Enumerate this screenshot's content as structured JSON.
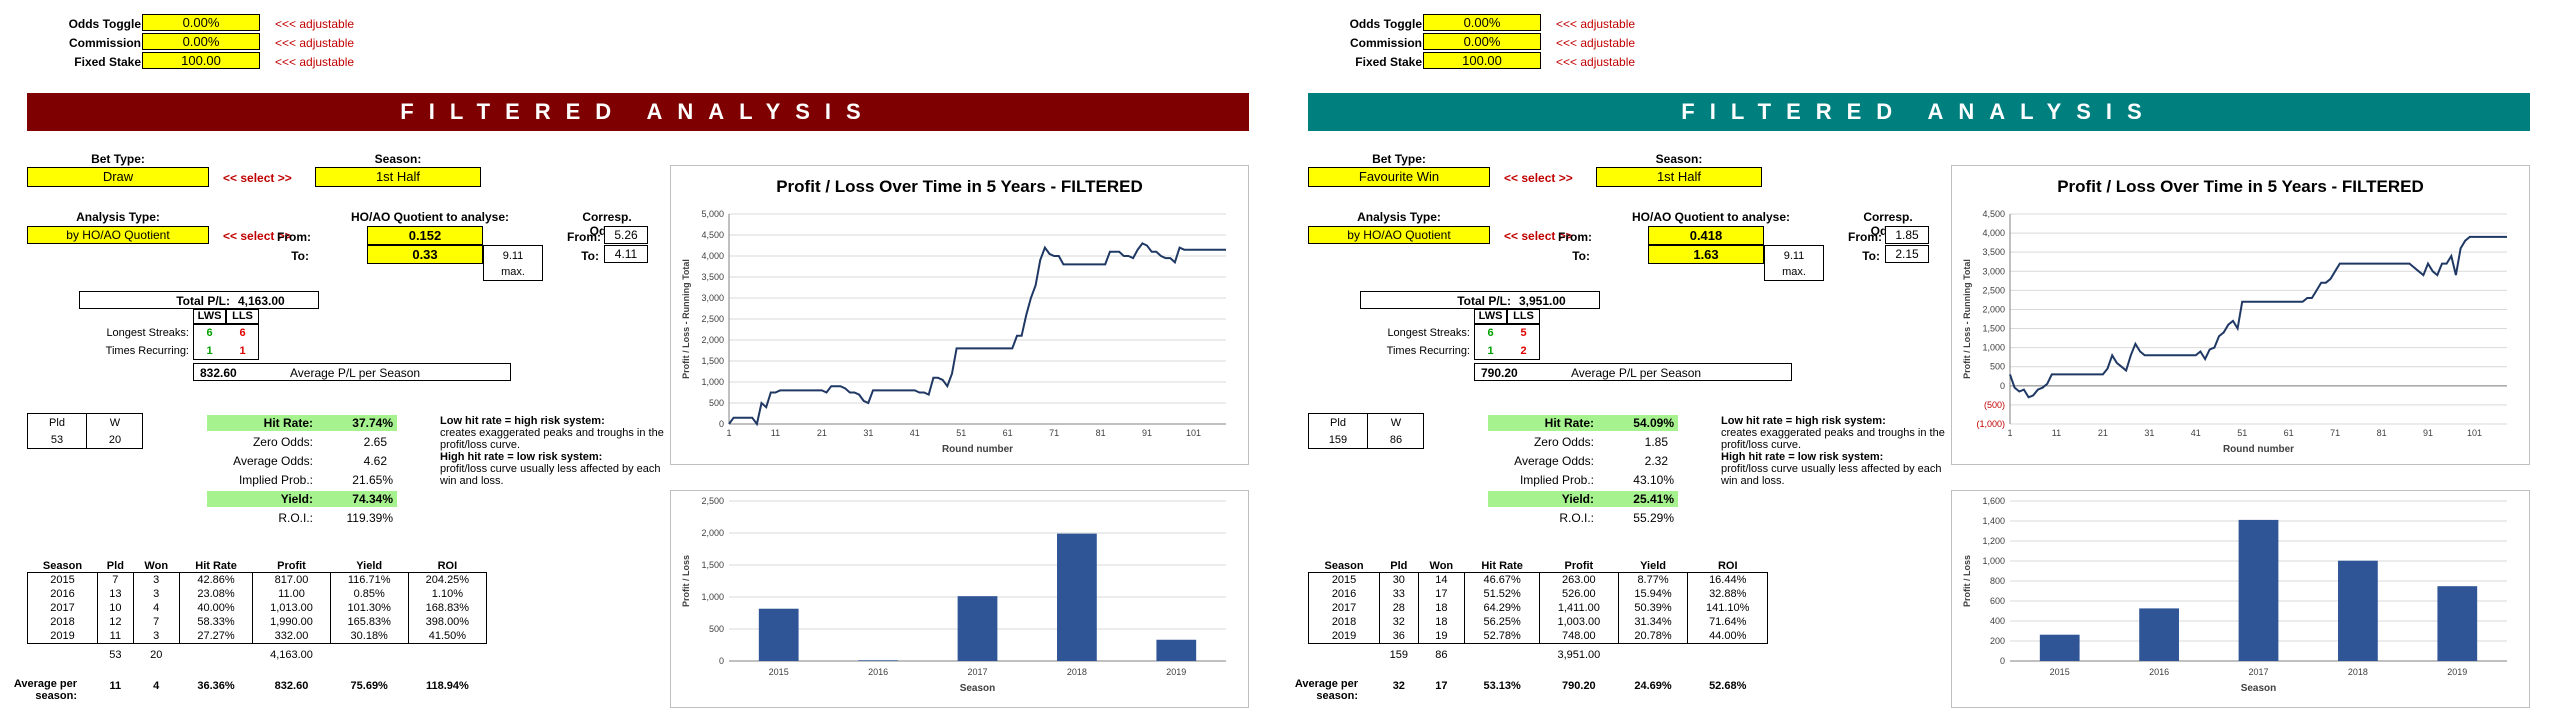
{
  "common": {
    "odds_toggle_label": "Odds Toggle:",
    "commission_label": "Commission:",
    "fixed_stake_label": "Fixed Stake:",
    "adjustable": "<<< adjustable",
    "banner": "FILTERED ANALYSIS",
    "bet_type_label": "Bet Type:",
    "season_label": "Season:",
    "select": "<< select >>",
    "analysis_type_label": "Analysis Type:",
    "quotient_label": "HO/AO Quotient to analyse:",
    "from_label": "From:",
    "to_label": "To:",
    "max_label": "max.",
    "corresp_label": "Corresp. Odds:",
    "total_pl_label": "Total P/L:",
    "lws": "LWS",
    "lls": "LLS",
    "longest_streaks_label": "Longest Streaks:",
    "times_recurring_label": "Times Recurring:",
    "avg_pl_season_label": "Average P/L per Season",
    "pld": "Pld",
    "w": "W",
    "hit_rate_label": "Hit Rate:",
    "zero_odds_label": "Zero Odds:",
    "average_odds_label": "Average Odds:",
    "implied_prob_label": "Implied Prob.:",
    "yield_label": "Yield:",
    "roi_label": "R.O.I.:",
    "note_low_title": "Low hit rate = high risk system:",
    "note_low_body": "creates exaggerated peaks and troughs in the profit/loss curve.",
    "note_high_title": "High hit rate = low risk system:",
    "note_high_body": "profit/loss curve usually less affected by each win and loss.",
    "table_headers": [
      "Season",
      "Pld",
      "Won",
      "Hit Rate",
      "Profit",
      "Yield",
      "ROI"
    ],
    "avg_per_label_1": "Average per",
    "avg_per_label_2": "season:",
    "line_title": "Profit / Loss Over Time in 5 Years - FILTERED",
    "line_ylabel": "Profit / Loss - Running Total",
    "line_xlabel": "Round number",
    "line_xticks": [
      "1",
      "11",
      "21",
      "31",
      "41",
      "51",
      "61",
      "71",
      "81",
      "91",
      "101"
    ],
    "bar_ylabel": "Profit / Loss",
    "bar_xlabel": "Season",
    "accent_left": "#7f0000",
    "accent_right": "#007f7f",
    "series_color": "#1f3864",
    "bar_color": "#2f5597"
  },
  "left": {
    "odds_toggle": "0.00%",
    "commission": "0.00%",
    "fixed_stake": "100.00",
    "bet_type": "Draw",
    "season": "1st Half",
    "analysis_type": "by HO/AO Quotient",
    "quotient_from": "0.152",
    "quotient_to": "0.33",
    "max_value": "9.11",
    "odds_from": "5.26",
    "odds_to": "4.11",
    "total_pl": "4,163.00",
    "lws_streak": "6",
    "lls_streak": "6",
    "lws_times": "1",
    "lls_times": "1",
    "avg_pl_season": "832.60",
    "pld": "53",
    "w": "20",
    "hit_rate": "37.74%",
    "zero_odds": "2.65",
    "average_odds": "4.62",
    "implied_prob": "21.65%",
    "yield": "74.34%",
    "roi": "119.39%",
    "rows": [
      [
        "2015",
        "7",
        "3",
        "42.86%",
        "817.00",
        "116.71%",
        "204.25%"
      ],
      [
        "2016",
        "13",
        "3",
        "23.08%",
        "11.00",
        "0.85%",
        "1.10%"
      ],
      [
        "2017",
        "10",
        "4",
        "40.00%",
        "1,013.00",
        "101.30%",
        "168.83%"
      ],
      [
        "2018",
        "12",
        "7",
        "58.33%",
        "1,990.00",
        "165.83%",
        "398.00%"
      ],
      [
        "2019",
        "11",
        "3",
        "27.27%",
        "332.00",
        "30.18%",
        "41.50%"
      ]
    ],
    "totals": [
      "53",
      "20",
      "4,163.00"
    ],
    "averages": [
      "11",
      "4",
      "36.36%",
      "832.60",
      "75.69%",
      "118.94%"
    ]
  },
  "right": {
    "odds_toggle": "0.00%",
    "commission": "0.00%",
    "fixed_stake": "100.00",
    "bet_type": "Favourite Win",
    "season": "1st Half",
    "analysis_type": "by HO/AO Quotient",
    "quotient_from": "0.418",
    "quotient_to": "1.63",
    "max_value": "9.11",
    "odds_from": "1.85",
    "odds_to": "2.15",
    "total_pl": "3,951.00",
    "lws_streak": "6",
    "lls_streak": "5",
    "lws_times": "1",
    "lls_times": "2",
    "avg_pl_season": "790.20",
    "pld": "159",
    "w": "86",
    "hit_rate": "54.09%",
    "zero_odds": "1.85",
    "average_odds": "2.32",
    "implied_prob": "43.10%",
    "yield": "25.41%",
    "roi": "55.29%",
    "rows": [
      [
        "2015",
        "30",
        "14",
        "46.67%",
        "263.00",
        "8.77%",
        "16.44%"
      ],
      [
        "2016",
        "33",
        "17",
        "51.52%",
        "526.00",
        "15.94%",
        "32.88%"
      ],
      [
        "2017",
        "28",
        "18",
        "64.29%",
        "1,411.00",
        "50.39%",
        "141.10%"
      ],
      [
        "2018",
        "32",
        "18",
        "56.25%",
        "1,003.00",
        "31.34%",
        "71.64%"
      ],
      [
        "2019",
        "36",
        "19",
        "52.78%",
        "748.00",
        "20.78%",
        "44.00%"
      ]
    ],
    "totals": [
      "159",
      "86",
      "3,951.00"
    ],
    "averages": [
      "32",
      "17",
      "53.13%",
      "790.20",
      "24.69%",
      "52.68%"
    ]
  },
  "chart_data": [
    {
      "type": "line",
      "title": "Profit / Loss Over Time in 5 Years - FILTERED",
      "xlabel": "Round number",
      "ylabel": "Profit / Loss - Running Total",
      "ylim": [
        0,
        5000
      ],
      "xlim": [
        1,
        108
      ],
      "yticks": [
        "0",
        "500",
        "1,000",
        "1,500",
        "2,000",
        "2,500",
        "3,000",
        "3,500",
        "4,000",
        "4,500",
        "5,000"
      ],
      "x": [
        1,
        2,
        3,
        4,
        5,
        6,
        7,
        8,
        9,
        10,
        11,
        12,
        13,
        14,
        15,
        16,
        17,
        18,
        19,
        20,
        21,
        22,
        23,
        24,
        25,
        26,
        27,
        28,
        29,
        30,
        31,
        32,
        33,
        34,
        35,
        36,
        37,
        38,
        39,
        40,
        41,
        42,
        43,
        44,
        45,
        46,
        47,
        48,
        49,
        50,
        51,
        52,
        53,
        54,
        55,
        56,
        57,
        58,
        59,
        60,
        61,
        62,
        63,
        64,
        65,
        66,
        67,
        68,
        69,
        70,
        71,
        72,
        73,
        74,
        75,
        76,
        77,
        78,
        79,
        80,
        81,
        82,
        83,
        84,
        85,
        86,
        87,
        88,
        89,
        90,
        91,
        92,
        93,
        94,
        95,
        96,
        97,
        98,
        99,
        100,
        101,
        102,
        103,
        104,
        105,
        106,
        107,
        108
      ],
      "y": [
        0,
        150,
        150,
        150,
        150,
        150,
        0,
        500,
        400,
        750,
        750,
        800,
        800,
        800,
        800,
        800,
        800,
        800,
        800,
        800,
        800,
        750,
        900,
        900,
        900,
        850,
        750,
        750,
        700,
        550,
        500,
        800,
        800,
        800,
        800,
        800,
        800,
        800,
        800,
        800,
        800,
        750,
        750,
        700,
        1100,
        1100,
        1050,
        900,
        1200,
        1800,
        1800,
        1800,
        1800,
        1800,
        1800,
        1800,
        1800,
        1800,
        1800,
        1800,
        1800,
        1800,
        2100,
        2100,
        2600,
        3000,
        3300,
        3900,
        4200,
        4050,
        4000,
        4000,
        3800,
        3800,
        3800,
        3800,
        3800,
        3800,
        3800,
        3800,
        3800,
        3800,
        4100,
        4100,
        4100,
        4000,
        4000,
        3950,
        4150,
        4300,
        4250,
        4100,
        4100,
        4000,
        3950,
        3950,
        3850,
        4200,
        4150,
        4150,
        4150,
        4150,
        4150,
        4150,
        4150,
        4150,
        4150,
        4150
      ],
      "panel": "left"
    },
    {
      "type": "bar",
      "xlabel": "Season",
      "ylabel": "Profit / Loss",
      "ylim": [
        0,
        2500
      ],
      "yticks": [
        "0",
        "500",
        "1,000",
        "1,500",
        "2,000",
        "2,500"
      ],
      "categories": [
        "2015",
        "2016",
        "2017",
        "2018",
        "2019"
      ],
      "values": [
        817,
        11,
        1013,
        1990,
        332
      ],
      "panel": "left"
    },
    {
      "type": "line",
      "title": "Profit / Loss Over Time in 5 Years - FILTERED",
      "xlabel": "Round number",
      "ylabel": "Profit / Loss - Running Total",
      "ylim": [
        -1000,
        4500
      ],
      "xlim": [
        1,
        108
      ],
      "yticks": [
        "(1,000)",
        "(500)",
        "0",
        "500",
        "1,000",
        "1,500",
        "2,000",
        "2,500",
        "3,000",
        "3,500",
        "4,000",
        "4,500"
      ],
      "x": [
        1,
        2,
        3,
        4,
        5,
        6,
        7,
        8,
        9,
        10,
        11,
        12,
        13,
        14,
        15,
        16,
        17,
        18,
        19,
        20,
        21,
        22,
        23,
        24,
        25,
        26,
        27,
        28,
        29,
        30,
        31,
        32,
        33,
        34,
        35,
        36,
        37,
        38,
        39,
        40,
        41,
        42,
        43,
        44,
        45,
        46,
        47,
        48,
        49,
        50,
        51,
        52,
        53,
        54,
        55,
        56,
        57,
        58,
        59,
        60,
        61,
        62,
        63,
        64,
        65,
        66,
        67,
        68,
        69,
        70,
        71,
        72,
        73,
        74,
        75,
        76,
        77,
        78,
        79,
        80,
        81,
        82,
        83,
        84,
        85,
        86,
        87,
        88,
        89,
        90,
        91,
        92,
        93,
        94,
        95,
        96,
        97,
        98,
        99,
        100,
        101,
        102,
        103,
        104,
        105,
        106,
        107,
        108
      ],
      "y": [
        300,
        -50,
        -150,
        -100,
        -300,
        -250,
        -100,
        -50,
        50,
        300,
        300,
        300,
        300,
        300,
        300,
        300,
        300,
        300,
        300,
        300,
        300,
        450,
        800,
        600,
        500,
        400,
        800,
        1100,
        900,
        800,
        800,
        800,
        800,
        800,
        800,
        800,
        800,
        800,
        800,
        800,
        800,
        900,
        700,
        950,
        1000,
        1300,
        1400,
        1600,
        1700,
        1500,
        2200,
        2200,
        2200,
        2200,
        2200,
        2200,
        2200,
        2200,
        2200,
        2200,
        2200,
        2200,
        2200,
        2200,
        2300,
        2300,
        2500,
        2700,
        2700,
        2800,
        3000,
        3200,
        3200,
        3200,
        3200,
        3200,
        3200,
        3200,
        3200,
        3200,
        3200,
        3200,
        3200,
        3200,
        3200,
        3200,
        3200,
        3100,
        3000,
        2900,
        3200,
        3000,
        2900,
        3200,
        3200,
        3400,
        2900,
        3600,
        3800,
        3900,
        3900,
        3900,
        3900,
        3900,
        3900,
        3900,
        3900,
        3900
      ],
      "panel": "right"
    },
    {
      "type": "bar",
      "xlabel": "Season",
      "ylabel": "Profit / Loss",
      "ylim": [
        0,
        1600
      ],
      "yticks": [
        "0",
        "200",
        "400",
        "600",
        "800",
        "1,000",
        "1,200",
        "1,400",
        "1,600"
      ],
      "categories": [
        "2015",
        "2016",
        "2017",
        "2018",
        "2019"
      ],
      "values": [
        263,
        526,
        1411,
        1003,
        748
      ],
      "panel": "right"
    }
  ]
}
